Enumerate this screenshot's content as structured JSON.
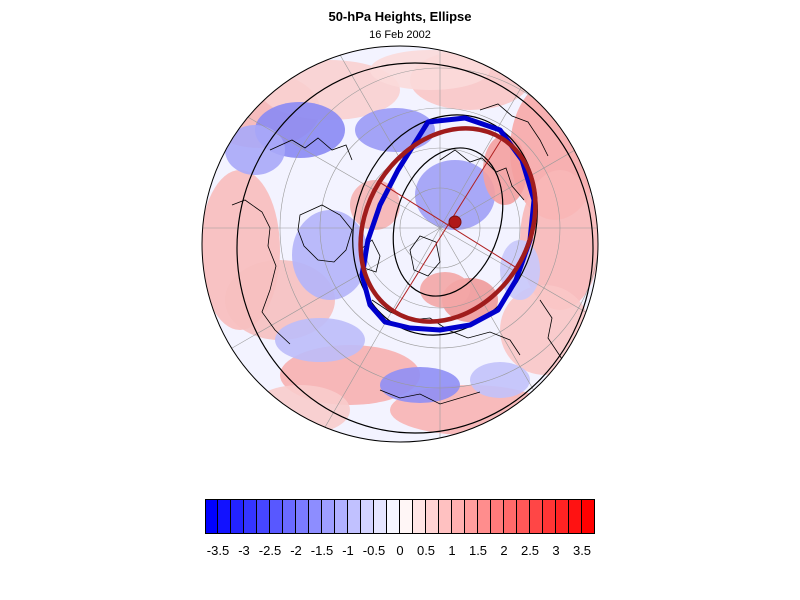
{
  "map": {
    "title": "50-hPa Heights, Ellipse",
    "date": "16 Feb 2002",
    "projection": "north-polar-stereographic",
    "fill_colors": {
      "negative": "#0000ff",
      "neutral": "#ffffff",
      "positive": "#ff0000"
    },
    "overlays": [
      {
        "name": "observed-vortex-edge",
        "color": "#0000cc"
      },
      {
        "name": "fitted-ellipse",
        "color": "#a01c1c"
      },
      {
        "name": "ellipse-axes",
        "color": "#b02020"
      },
      {
        "name": "ellipse-centroid",
        "color": "#b01818"
      },
      {
        "name": "height-contours",
        "color": "#000000"
      },
      {
        "name": "coastlines",
        "color": "#000000"
      }
    ]
  },
  "colorbar": {
    "min": -3.75,
    "max": 3.75,
    "step": 0.25,
    "labels": [
      "-3.5",
      "-3",
      "-2.5",
      "-2",
      "-1.5",
      "-1",
      "-0.5",
      "0",
      "0.5",
      "1",
      "1.5",
      "2",
      "2.5",
      "3",
      "3.5"
    ]
  }
}
